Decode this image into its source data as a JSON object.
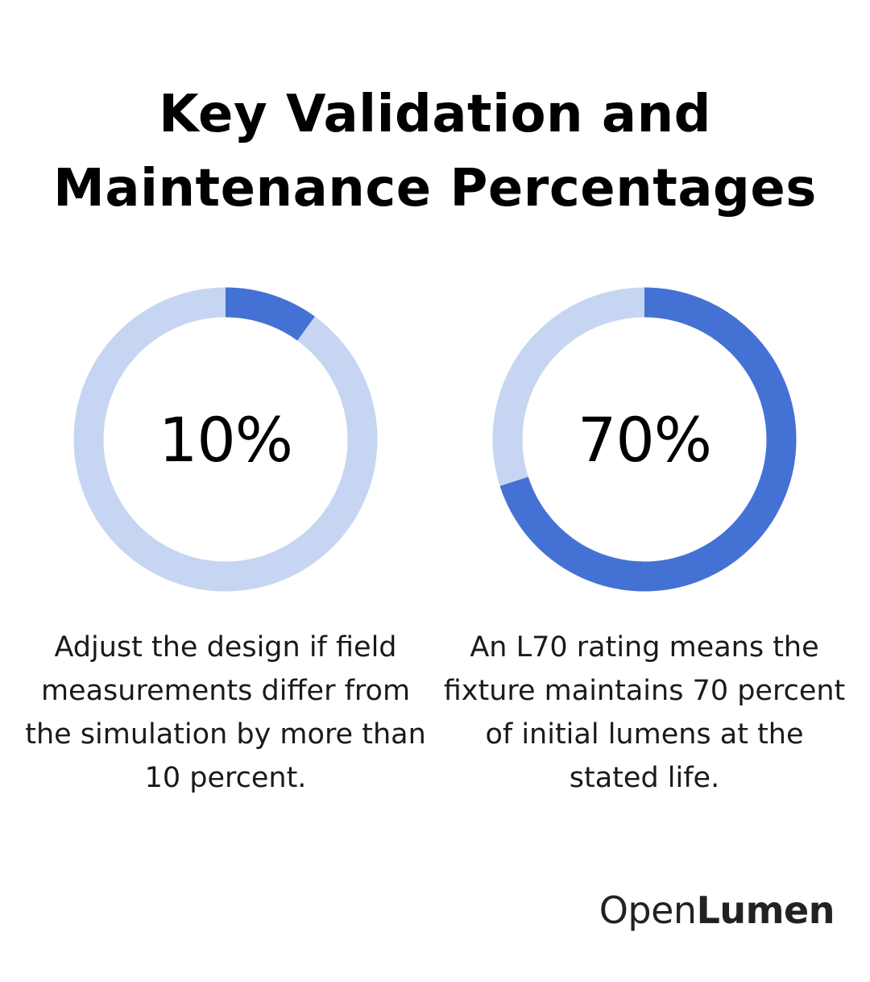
{
  "chart_data": [
    {
      "type": "pie",
      "style": "donut",
      "value": 10,
      "label": "10%",
      "caption": "Adjust the design if field measurements differ from the simulation by more than 10 percent.",
      "colors": {
        "filled": "#4472d4",
        "track": "#c6d5f1"
      }
    },
    {
      "type": "pie",
      "style": "donut",
      "value": 70,
      "label": "70%",
      "caption": "An L70 rating means the fixture maintains 70 percent of initial lumens at the stated life.",
      "colors": {
        "filled": "#4472d4",
        "track": "#c6d5f1"
      }
    }
  ],
  "header": {
    "title_line1": "Key Validation and",
    "title_line2": "Maintenance Percentages"
  },
  "brand": {
    "part1": "Open",
    "part2": "Lumen"
  }
}
